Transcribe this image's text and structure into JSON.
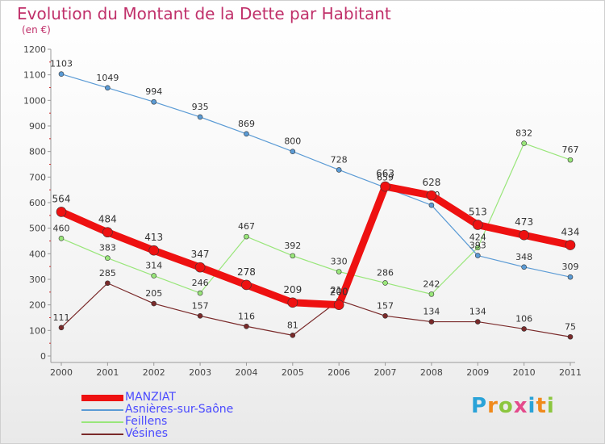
{
  "title": "Evolution du Montant de la Dette par Habitant",
  "unit": "(en €)",
  "logo": "Proxiti",
  "chart_data": {
    "type": "line",
    "x": [
      "2000",
      "2001",
      "2002",
      "2003",
      "2004",
      "2005",
      "2006",
      "2007",
      "2008",
      "2009",
      "2010",
      "2011"
    ],
    "ylim": [
      0,
      1200
    ],
    "yticks": [
      0,
      100,
      200,
      300,
      400,
      500,
      600,
      700,
      800,
      900,
      1000,
      1100,
      1200
    ],
    "grid": false,
    "legend_position": "bottom-left",
    "series": [
      {
        "name": "Vésines",
        "color": "#7a2a2a",
        "width": 1.2,
        "values": [
          111,
          285,
          205,
          157,
          116,
          81,
          218,
          157,
          134,
          134,
          106,
          75
        ]
      },
      {
        "name": "Feillens",
        "color": "#99e67a",
        "width": 1.2,
        "values": [
          460,
          383,
          314,
          246,
          467,
          392,
          330,
          286,
          242,
          424,
          832,
          767
        ]
      },
      {
        "name": "Asnières-sur-Saône",
        "color": "#5b9bd5",
        "width": 1.2,
        "values": [
          1103,
          1049,
          994,
          935,
          869,
          800,
          728,
          659,
          590,
          393,
          348,
          309
        ]
      },
      {
        "name": "MANZIAT",
        "color": "#ee1111",
        "width": 9,
        "values": [
          564,
          484,
          413,
          347,
          278,
          209,
          200,
          663,
          628,
          513,
          473,
          434
        ]
      }
    ]
  },
  "legend_order": [
    "MANZIAT",
    "Asnières-sur-Saône",
    "Feillens",
    "Vésines"
  ]
}
